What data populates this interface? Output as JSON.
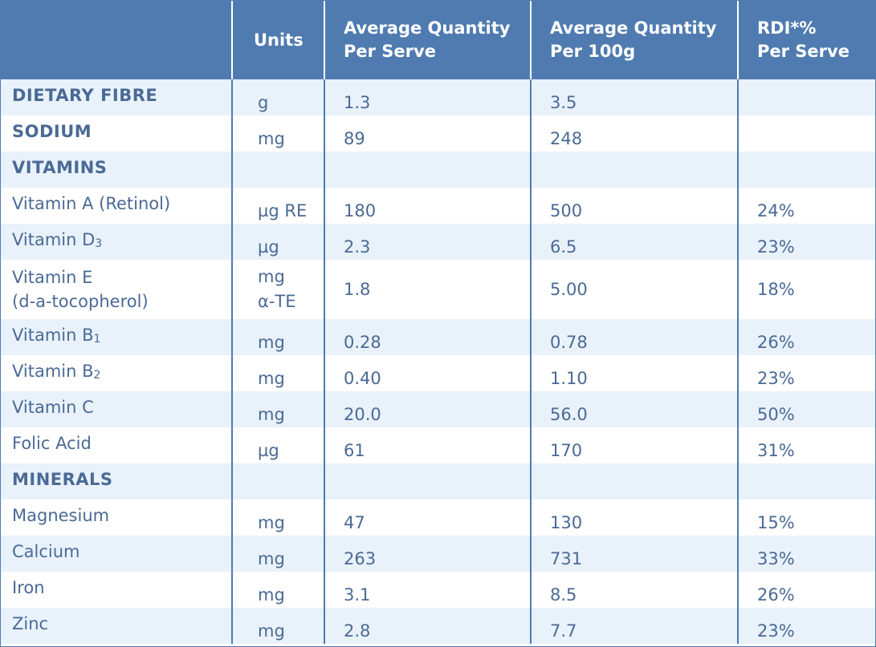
{
  "headers": {
    "blank": "",
    "units": "Units",
    "avg_serve_1": "Average Quantity",
    "avg_serve_2": "Per Serve",
    "avg_100g_1": "Average Quantity",
    "avg_100g_2": "Per 100g",
    "rdi_1": "RDI*%",
    "rdi_2": "Per Serve"
  },
  "rows": [
    {
      "name": "DIETARY FIBRE",
      "unit": "g",
      "serve": "1.3",
      "per100": "3.5",
      "rdi": ""
    },
    {
      "name": "SODIUM",
      "unit": "mg",
      "serve": "89",
      "per100": "248",
      "rdi": ""
    },
    {
      "name": "VITAMINS",
      "unit": "",
      "serve": "",
      "per100": "",
      "rdi": ""
    },
    {
      "name": "Vitamin A (Retinol)",
      "unit": "µg RE",
      "serve": "180",
      "per100": "500",
      "rdi": "24%"
    },
    {
      "name": "Vitamin D",
      "name_sub": "3",
      "unit": "µg",
      "serve": "2.3",
      "per100": "6.5",
      "rdi": "23%"
    },
    {
      "name": "Vitamin E",
      "name_2": "(d-a-tocopherol)",
      "unit": "mg",
      "unit_2": "α-TE",
      "serve": "1.8",
      "per100": "5.00",
      "rdi": "18%"
    },
    {
      "name": "Vitamin B",
      "name_sub": "1",
      "unit": "mg",
      "serve": "0.28",
      "per100": "0.78",
      "rdi": "26%"
    },
    {
      "name": "Vitamin B",
      "name_sub": "2",
      "unit": "mg",
      "serve": "0.40",
      "per100": "1.10",
      "rdi": "23%"
    },
    {
      "name": "Vitamin C",
      "unit": "mg",
      "serve": "20.0",
      "per100": "56.0",
      "rdi": "50%"
    },
    {
      "name": "Folic Acid",
      "unit": "µg",
      "serve": "61",
      "per100": "170",
      "rdi": "31%"
    },
    {
      "name": "MINERALS",
      "unit": "",
      "serve": "",
      "per100": "",
      "rdi": ""
    },
    {
      "name": "Magnesium",
      "unit": "mg",
      "serve": "47",
      "per100": "130",
      "rdi": "15%"
    },
    {
      "name": "Calcium",
      "unit": "mg",
      "serve": "263",
      "per100": "731",
      "rdi": "33%"
    },
    {
      "name": "Iron",
      "unit": "mg",
      "serve": "3.1",
      "per100": "8.5",
      "rdi": "26%"
    },
    {
      "name": "Zinc",
      "unit": "mg",
      "serve": "2.8",
      "per100": "7.7",
      "rdi": "23%"
    }
  ],
  "colors": {
    "header_bg": "#4f7bb0",
    "stripe": "#e9f2fb",
    "text": "#4a6a95"
  }
}
